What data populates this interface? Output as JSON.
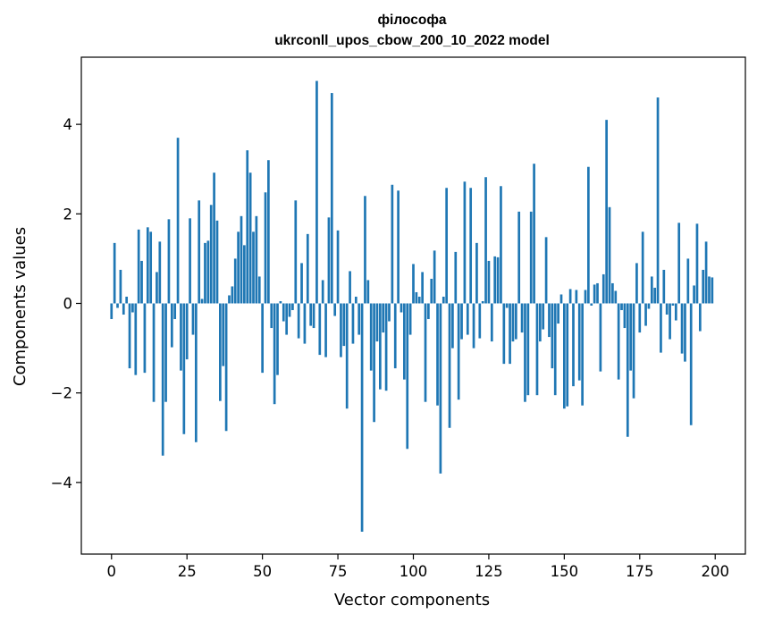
{
  "chart_data": {
    "type": "bar",
    "title": "філософа",
    "subtitle": "ukrconll_upos_cbow_200_10_2022 model",
    "xlabel": "Vector components",
    "ylabel": "Components values",
    "xlim": [
      -10,
      210
    ],
    "ylim": [
      -5.6,
      5.5
    ],
    "x_ticks": [
      0,
      25,
      50,
      75,
      100,
      125,
      150,
      175,
      200
    ],
    "y_ticks": [
      -4,
      -2,
      0,
      2,
      4
    ],
    "y_tick_labels": [
      "−4",
      "−2",
      "0",
      "2",
      "4"
    ],
    "grid": false,
    "bar_color": "#1f77b4",
    "values": [
      -0.35,
      1.35,
      -0.1,
      0.75,
      -0.25,
      0.15,
      -1.45,
      -0.2,
      -1.6,
      1.65,
      0.95,
      -1.55,
      1.7,
      1.6,
      -2.2,
      0.7,
      1.38,
      -3.4,
      -2.2,
      1.88,
      -0.98,
      -0.35,
      3.7,
      -1.5,
      -2.92,
      -1.25,
      1.9,
      -0.7,
      -3.1,
      2.3,
      0.1,
      1.35,
      1.4,
      2.2,
      2.92,
      1.85,
      -2.18,
      -1.4,
      -2.85,
      0.18,
      0.38,
      1.0,
      1.6,
      1.95,
      1.3,
      3.42,
      2.92,
      1.6,
      1.95,
      0.6,
      -1.55,
      2.48,
      3.2,
      -0.55,
      -2.25,
      -1.6,
      0.05,
      -0.4,
      -0.7,
      -0.3,
      -0.15,
      2.3,
      -0.78,
      0.9,
      -0.9,
      1.55,
      -0.5,
      -0.55,
      4.97,
      -1.15,
      0.52,
      -1.2,
      1.92,
      4.7,
      -0.28,
      1.63,
      -1.2,
      -0.95,
      -2.35,
      0.72,
      -0.9,
      0.15,
      -0.7,
      -5.1,
      2.4,
      0.52,
      -1.5,
      -2.65,
      -0.85,
      -1.92,
      -0.65,
      -1.95,
      -0.4,
      2.65,
      -1.45,
      2.52,
      -0.2,
      -1.7,
      -3.25,
      -0.7,
      0.88,
      0.25,
      0.15,
      0.7,
      -2.2,
      -0.35,
      0.55,
      1.18,
      -2.28,
      -3.8,
      0.15,
      2.58,
      -2.78,
      -1.0,
      1.15,
      -2.15,
      -0.8,
      2.72,
      -0.7,
      2.58,
      -1.0,
      1.35,
      -0.78,
      0.05,
      2.82,
      0.95,
      -0.85,
      1.05,
      1.03,
      2.62,
      -1.35,
      -0.1,
      -1.35,
      -0.85,
      -0.8,
      2.05,
      -0.65,
      -2.2,
      -2.05,
      2.05,
      3.12,
      -2.05,
      -0.85,
      -0.58,
      1.48,
      -0.75,
      -1.45,
      -2.05,
      -0.45,
      0.2,
      -2.35,
      -2.3,
      0.32,
      -1.85,
      0.3,
      -1.72,
      -2.28,
      0.3,
      3.05,
      -0.05,
      0.42,
      0.45,
      -1.52,
      0.65,
      4.1,
      2.15,
      0.45,
      0.28,
      -1.7,
      -0.15,
      -0.55,
      -2.98,
      -1.5,
      -2.12,
      0.9,
      -0.65,
      1.6,
      -0.5,
      -0.12,
      0.6,
      0.35,
      4.6,
      -1.1,
      0.75,
      -0.25,
      -0.8,
      -0.05,
      -0.38,
      1.8,
      -1.12,
      -1.3,
      1.0,
      -2.72,
      0.4,
      1.78,
      -0.62,
      0.75,
      1.38,
      0.6,
      0.58
    ]
  }
}
